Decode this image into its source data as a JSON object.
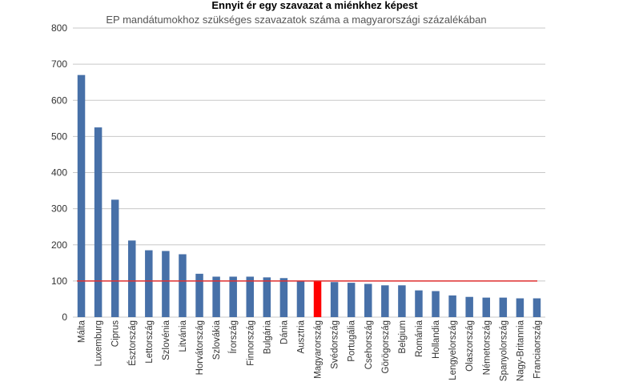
{
  "chart_data": {
    "type": "bar",
    "title": "Ennyit ér egy szavazat a miénkhez képest",
    "subtitle": "EP mandátumokhoz szükséges szavazatok száma a magyarországi százalékában",
    "xlabel": "",
    "ylabel": "",
    "ylim": [
      0,
      800
    ],
    "yticks": [
      0,
      100,
      200,
      300,
      400,
      500,
      600,
      700,
      800
    ],
    "grid": true,
    "categories": [
      "Málta",
      "Luxemburg",
      "Ciprus",
      "Észtország",
      "Lettország",
      "Szlovénia",
      "Litvánia",
      "Horvátország",
      "Szlovákia",
      "Írország",
      "Finnország",
      "Bulgária",
      "Dánia",
      "Ausztria",
      "Magyarország",
      "Svédország",
      "Portugália",
      "Csehország",
      "Görögország",
      "Belgium",
      "Románia",
      "Hollandia",
      "Lengyelország",
      "Olaszország",
      "Németország",
      "Spanyolország",
      "Nagy-Britannia",
      "Franciaország"
    ],
    "values": [
      670,
      525,
      325,
      212,
      185,
      183,
      174,
      120,
      112,
      112,
      112,
      110,
      108,
      100,
      100,
      97,
      95,
      92,
      88,
      88,
      74,
      72,
      60,
      56,
      54,
      54,
      52,
      52
    ],
    "highlight_category": "Magyarország",
    "reference_line": 100,
    "colors": {
      "bar": "#4770a8",
      "highlight": "#ff0000",
      "reference_line": "#e03030",
      "grid": "#c8c8c8"
    }
  }
}
